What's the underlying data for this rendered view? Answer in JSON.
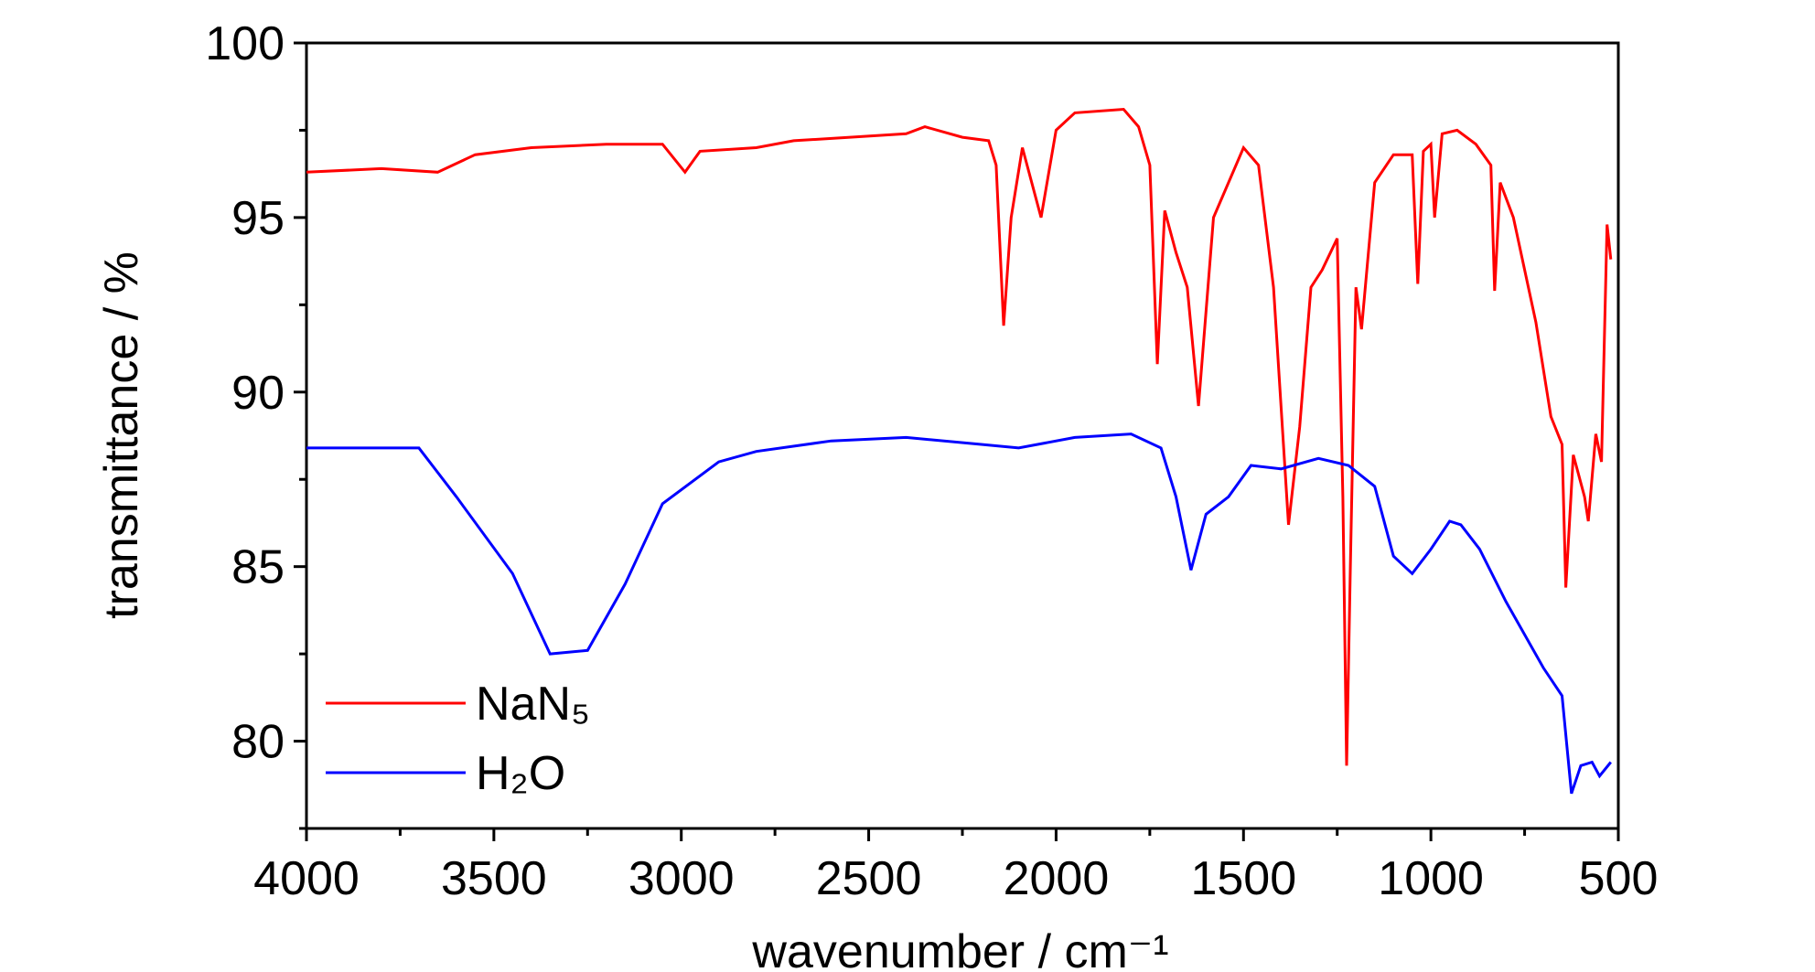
{
  "chart_data": {
    "type": "line",
    "xlabel": "wavenumber / cm⁻¹",
    "ylabel": "transmittance / %",
    "xlim": [
      4000,
      500
    ],
    "ylim": [
      77.5,
      100
    ],
    "xticks": [
      4000,
      3500,
      3000,
      2500,
      2000,
      1500,
      1000,
      500
    ],
    "xminorticks": [
      3750,
      3250,
      2750,
      2250,
      1750,
      1250,
      750
    ],
    "yticks": [
      80,
      85,
      90,
      95,
      100
    ],
    "yminorticks": [
      77.5,
      82.5,
      87.5,
      92.5,
      97.5
    ],
    "legend": "lower left",
    "series": [
      {
        "name": "NaN₅",
        "color": "#ff0000",
        "x": [
          4000,
          3800,
          3650,
          3550,
          3400,
          3200,
          3050,
          2990,
          2950,
          2800,
          2700,
          2550,
          2400,
          2350,
          2250,
          2180,
          2160,
          2140,
          2120,
          2090,
          2040,
          2000,
          1950,
          1820,
          1780,
          1750,
          1730,
          1710,
          1680,
          1650,
          1620,
          1580,
          1500,
          1460,
          1420,
          1380,
          1350,
          1320,
          1290,
          1250,
          1235,
          1225,
          1215,
          1200,
          1185,
          1150,
          1100,
          1050,
          1035,
          1020,
          1000,
          990,
          970,
          930,
          880,
          840,
          830,
          815,
          780,
          720,
          680,
          650,
          640,
          620,
          590,
          580,
          560,
          545,
          530,
          520
        ],
        "values": [
          96.3,
          96.4,
          96.3,
          96.8,
          97.0,
          97.1,
          97.1,
          96.3,
          96.9,
          97.0,
          97.2,
          97.3,
          97.4,
          97.6,
          97.3,
          97.2,
          96.5,
          91.9,
          95.0,
          97.0,
          95.0,
          97.5,
          98.0,
          98.1,
          97.6,
          96.5,
          90.8,
          95.2,
          94.0,
          93.0,
          89.6,
          95.0,
          97.0,
          96.5,
          93.0,
          86.2,
          89.0,
          93.0,
          93.5,
          94.4,
          87.0,
          79.3,
          85.0,
          93.0,
          91.8,
          96.0,
          96.8,
          96.8,
          93.1,
          96.9,
          97.1,
          95.0,
          97.4,
          97.5,
          97.1,
          96.5,
          92.9,
          96.0,
          95.0,
          92.0,
          89.3,
          88.5,
          84.4,
          88.2,
          87.0,
          86.3,
          88.8,
          88.0,
          94.8,
          93.8
        ]
      },
      {
        "name": "H₂O",
        "color": "#0000ff",
        "x": [
          4000,
          3700,
          3600,
          3450,
          3350,
          3250,
          3150,
          3050,
          2900,
          2800,
          2600,
          2400,
          2200,
          2100,
          1950,
          1800,
          1720,
          1680,
          1640,
          1600,
          1540,
          1480,
          1400,
          1300,
          1220,
          1150,
          1100,
          1050,
          1000,
          950,
          920,
          870,
          800,
          700,
          650,
          625,
          600,
          570,
          550,
          520
        ],
        "values": [
          88.4,
          88.4,
          87.0,
          84.8,
          82.5,
          82.6,
          84.5,
          86.8,
          88.0,
          88.3,
          88.6,
          88.7,
          88.5,
          88.4,
          88.7,
          88.8,
          88.4,
          87.0,
          84.9,
          86.5,
          87.0,
          87.9,
          87.8,
          88.1,
          87.9,
          87.3,
          85.3,
          84.8,
          85.5,
          86.3,
          86.2,
          85.5,
          84.0,
          82.1,
          81.3,
          78.5,
          79.3,
          79.4,
          79.0,
          79.4
        ]
      }
    ]
  }
}
